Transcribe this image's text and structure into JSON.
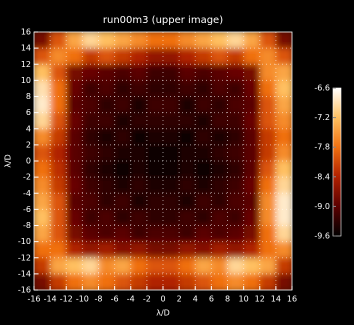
{
  "chart_data": {
    "type": "heatmap",
    "title": "run00m3 (upper image)",
    "xlabel": "λ/D",
    "ylabel": "λ/D",
    "x": [
      -15,
      -13,
      -11,
      -9,
      -7,
      -5,
      -3,
      -1,
      1,
      3,
      5,
      7,
      9,
      11,
      13,
      15
    ],
    "y": [
      15,
      13,
      11,
      9,
      7,
      5,
      3,
      1,
      -1,
      -3,
      -5,
      -7,
      -9,
      -11,
      -13,
      -15
    ],
    "z": [
      [
        -8.8,
        -8.0,
        -7.4,
        -7.0,
        -7.2,
        -7.4,
        -7.6,
        -7.8,
        -7.8,
        -7.6,
        -7.4,
        -7.2,
        -7.0,
        -7.4,
        -8.0,
        -8.8
      ],
      [
        -8.0,
        -7.6,
        -7.8,
        -8.2,
        -8.0,
        -8.2,
        -8.4,
        -8.6,
        -8.6,
        -8.4,
        -8.2,
        -8.0,
        -8.2,
        -7.8,
        -7.6,
        -8.0
      ],
      [
        -7.2,
        -8.0,
        -8.8,
        -8.9,
        -9.0,
        -9.1,
        -9.0,
        -9.2,
        -9.2,
        -9.0,
        -9.1,
        -9.0,
        -8.9,
        -8.8,
        -7.6,
        -7.4
      ],
      [
        -6.9,
        -7.8,
        -8.9,
        -9.2,
        -9.1,
        -9.3,
        -9.2,
        -9.3,
        -9.3,
        -9.2,
        -9.3,
        -9.1,
        -9.2,
        -8.9,
        -7.8,
        -7.2
      ],
      [
        -6.8,
        -7.8,
        -9.0,
        -9.1,
        -9.3,
        -9.2,
        -9.4,
        -9.2,
        -9.2,
        -9.4,
        -9.2,
        -9.3,
        -9.1,
        -9.0,
        -8.0,
        -7.4
      ],
      [
        -7.0,
        -8.0,
        -8.9,
        -9.2,
        -9.2,
        -9.4,
        -9.3,
        -9.3,
        -9.3,
        -9.3,
        -9.4,
        -9.2,
        -9.2,
        -8.9,
        -8.0,
        -7.6
      ],
      [
        -7.6,
        -8.2,
        -9.0,
        -9.3,
        -9.4,
        -9.3,
        -9.5,
        -9.4,
        -9.4,
        -9.5,
        -9.3,
        -9.4,
        -9.3,
        -9.0,
        -8.2,
        -7.8
      ],
      [
        -8.0,
        -8.4,
        -9.0,
        -9.2,
        -9.3,
        -9.4,
        -9.4,
        -9.5,
        -9.5,
        -9.4,
        -9.4,
        -9.3,
        -9.2,
        -9.0,
        -8.2,
        -7.6
      ],
      [
        -7.8,
        -8.3,
        -9.0,
        -9.3,
        -9.4,
        -9.5,
        -9.4,
        -9.5,
        -9.5,
        -9.4,
        -9.5,
        -9.4,
        -9.3,
        -9.0,
        -8.0,
        -7.2
      ],
      [
        -7.6,
        -8.2,
        -8.9,
        -9.2,
        -9.3,
        -9.4,
        -9.3,
        -9.4,
        -9.4,
        -9.3,
        -9.4,
        -9.3,
        -9.2,
        -8.9,
        -7.8,
        -7.0
      ],
      [
        -7.4,
        -8.0,
        -9.0,
        -9.1,
        -9.3,
        -9.2,
        -9.4,
        -9.3,
        -9.3,
        -9.4,
        -9.2,
        -9.3,
        -9.1,
        -9.0,
        -7.6,
        -6.8
      ],
      [
        -7.2,
        -8.0,
        -8.9,
        -9.2,
        -9.1,
        -9.3,
        -9.2,
        -9.3,
        -9.3,
        -9.2,
        -9.3,
        -9.1,
        -9.2,
        -8.9,
        -7.6,
        -6.8
      ],
      [
        -7.4,
        -8.0,
        -8.8,
        -9.0,
        -9.1,
        -9.0,
        -9.2,
        -9.1,
        -9.1,
        -9.2,
        -9.0,
        -9.1,
        -9.0,
        -8.8,
        -7.8,
        -7.0
      ],
      [
        -7.8,
        -7.8,
        -8.4,
        -8.6,
        -8.5,
        -8.7,
        -8.6,
        -8.8,
        -8.8,
        -8.6,
        -8.7,
        -8.5,
        -8.6,
        -8.4,
        -7.8,
        -7.6
      ],
      [
        -8.2,
        -7.4,
        -7.2,
        -7.0,
        -7.6,
        -7.4,
        -7.8,
        -8.0,
        -8.0,
        -7.8,
        -7.4,
        -7.6,
        -7.0,
        -7.2,
        -7.4,
        -8.2
      ],
      [
        -8.8,
        -8.2,
        -7.8,
        -7.6,
        -7.8,
        -8.0,
        -8.2,
        -8.4,
        -8.4,
        -8.2,
        -8.0,
        -7.8,
        -7.6,
        -7.8,
        -8.2,
        -8.8
      ]
    ],
    "xlim": [
      -16,
      16
    ],
    "ylim": [
      -16,
      16
    ],
    "xticks": [
      -16,
      -14,
      -12,
      -10,
      -8,
      -6,
      -4,
      -2,
      0,
      2,
      4,
      6,
      8,
      10,
      12,
      14,
      16
    ],
    "yticks": [
      -16,
      -14,
      -12,
      -10,
      -8,
      -6,
      -4,
      -2,
      0,
      2,
      4,
      6,
      8,
      10,
      12,
      14,
      16
    ],
    "clim": [
      -9.6,
      -6.6
    ],
    "cticks": [
      -6.6,
      -7.2,
      -7.8,
      -8.4,
      {
        "value": -9,
        "label": "-9.0"
      },
      -9.6
    ],
    "colormap": [
      "#000000",
      "#5a0000",
      "#b02000",
      "#f07010",
      "#ffc060",
      "#ffffff"
    ],
    "grid": true
  }
}
